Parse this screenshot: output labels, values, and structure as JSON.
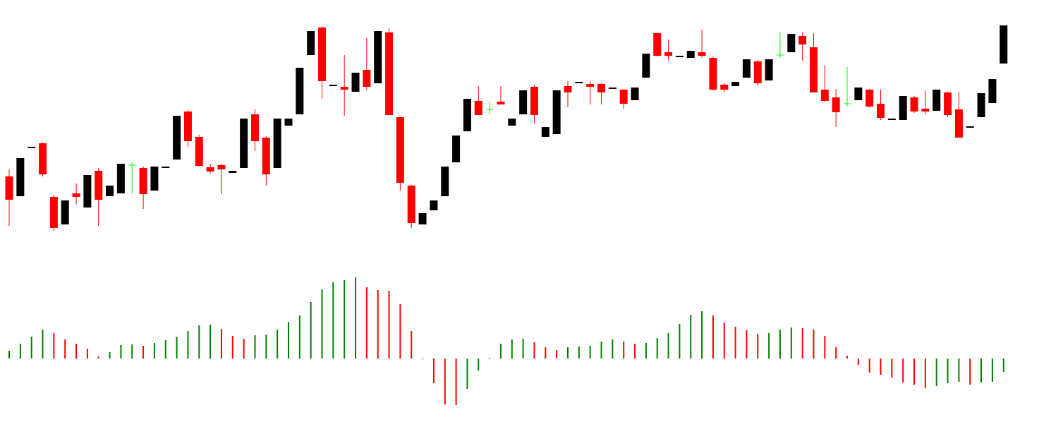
{
  "chart_data": [
    {
      "type": "candlestick",
      "open": [
        350,
        322,
        390,
        397,
        321,
        282,
        326,
        306,
        358,
        322,
        326,
        366,
        362,
        330,
        362,
        374,
        442,
        406,
        363,
        366,
        355,
        362,
        438,
        405,
        362,
        422,
        438,
        522,
        561,
        478,
        477,
        470,
        501,
        482,
        554,
        434,
        337,
        282,
        302,
        322,
        370,
        414,
        457,
        445,
        456,
        422,
        438,
        477,
        406,
        410,
        478,
        482,
        481,
        481,
        474,
        473,
        458,
        490,
        553,
        526,
        519,
        518,
        526,
        518,
        480,
        478,
        490,
        513,
        486,
        522,
        526,
        549,
        533,
        473,
        462,
        453,
        458,
        473,
        453,
        430,
        430,
        462,
        446,
        443,
        469,
        445,
        419,
        434,
        454,
        510
      ],
      "high": [
        360,
        376,
        392,
        398,
        324,
        316,
        340,
        352,
        362,
        337,
        368,
        370,
        364,
        364,
        364,
        436,
        444,
        409,
        368,
        368,
        358,
        432,
        445,
        407,
        432,
        432,
        504,
        556,
        563,
        480,
        522,
        497,
        546,
        556,
        560,
        434,
        338,
        298,
        316,
        364,
        408,
        460,
        478,
        456,
        478,
        432,
        472,
        480,
        420,
        472,
        485,
        484,
        485,
        482,
        476,
        474,
        476,
        524,
        554,
        544,
        521,
        528,
        558,
        520,
        482,
        484,
        516,
        515,
        516,
        554,
        552,
        554,
        553,
        508,
        474,
        505,
        476,
        474,
        473,
        432,
        464,
        464,
        472,
        473,
        470,
        470,
        421,
        468,
        488,
        564
      ],
      "low": [
        280,
        322,
        390,
        350,
        273,
        282,
        310,
        306,
        280,
        322,
        326,
        326,
        304,
        330,
        362,
        374,
        392,
        364,
        354,
        325,
        355,
        362,
        386,
        337,
        362,
        422,
        438,
        522,
        460,
        478,
        436,
        470,
        472,
        482,
        437,
        330,
        277,
        282,
        302,
        322,
        370,
        414,
        437,
        438,
        452,
        422,
        438,
        425,
        406,
        410,
        448,
        482,
        452,
        452,
        474,
        446,
        458,
        490,
        520,
        514,
        519,
        518,
        518,
        472,
        469,
        478,
        490,
        478,
        486,
        518,
        526,
        514,
        469,
        456,
        420,
        450,
        458,
        448,
        430,
        430,
        430,
        440,
        438,
        443,
        434,
        405,
        419,
        434,
        454,
        510
      ],
      "close": [
        317,
        376,
        392,
        353,
        277,
        316,
        321,
        352,
        317,
        337,
        368,
        366,
        325,
        364,
        364,
        436,
        400,
        365,
        357,
        360,
        358,
        432,
        400,
        353,
        432,
        432,
        504,
        556,
        485,
        480,
        473,
        497,
        477,
        556,
        437,
        341,
        284,
        298,
        316,
        364,
        408,
        460,
        437,
        445,
        452,
        432,
        472,
        437,
        420,
        472,
        469,
        484,
        477,
        469,
        476,
        453,
        476,
        524,
        521,
        521,
        521,
        528,
        521,
        473,
        473,
        484,
        516,
        482,
        516,
        522,
        552,
        537,
        469,
        457,
        441,
        453,
        476,
        449,
        433,
        432,
        464,
        442,
        442,
        473,
        437,
        405,
        421,
        468,
        488,
        564
      ],
      "ylim": [
        260,
        600
      ],
      "up_color": "#000000",
      "down_color": "#ff0000",
      "doji_color": "#00ff00"
    },
    {
      "type": "oscillator",
      "values": [
        11,
        21,
        31,
        41,
        36,
        27,
        21,
        14,
        3,
        9,
        19,
        20,
        18,
        22,
        26,
        31,
        39,
        47,
        48,
        42,
        32,
        28,
        33,
        34,
        41,
        52,
        61,
        80,
        98,
        108,
        111,
        115,
        101,
        97,
        96,
        77,
        39,
        -1,
        -35,
        -65,
        -66,
        -43,
        -17,
        1,
        21,
        27,
        28,
        23,
        16,
        12,
        16,
        17,
        18,
        24,
        27,
        24,
        21,
        22,
        29,
        36,
        49,
        62,
        67,
        61,
        51,
        45,
        40,
        35,
        36,
        41,
        44,
        43,
        41,
        32,
        16,
        4,
        -9,
        -20,
        -23,
        -27,
        -34,
        -37,
        -42,
        -39,
        -35,
        -33,
        -37,
        -34,
        -33,
        -19
      ],
      "ylim": [
        -82,
        128
      ],
      "up_color": "#008000",
      "down_color": "#ff0000"
    }
  ]
}
